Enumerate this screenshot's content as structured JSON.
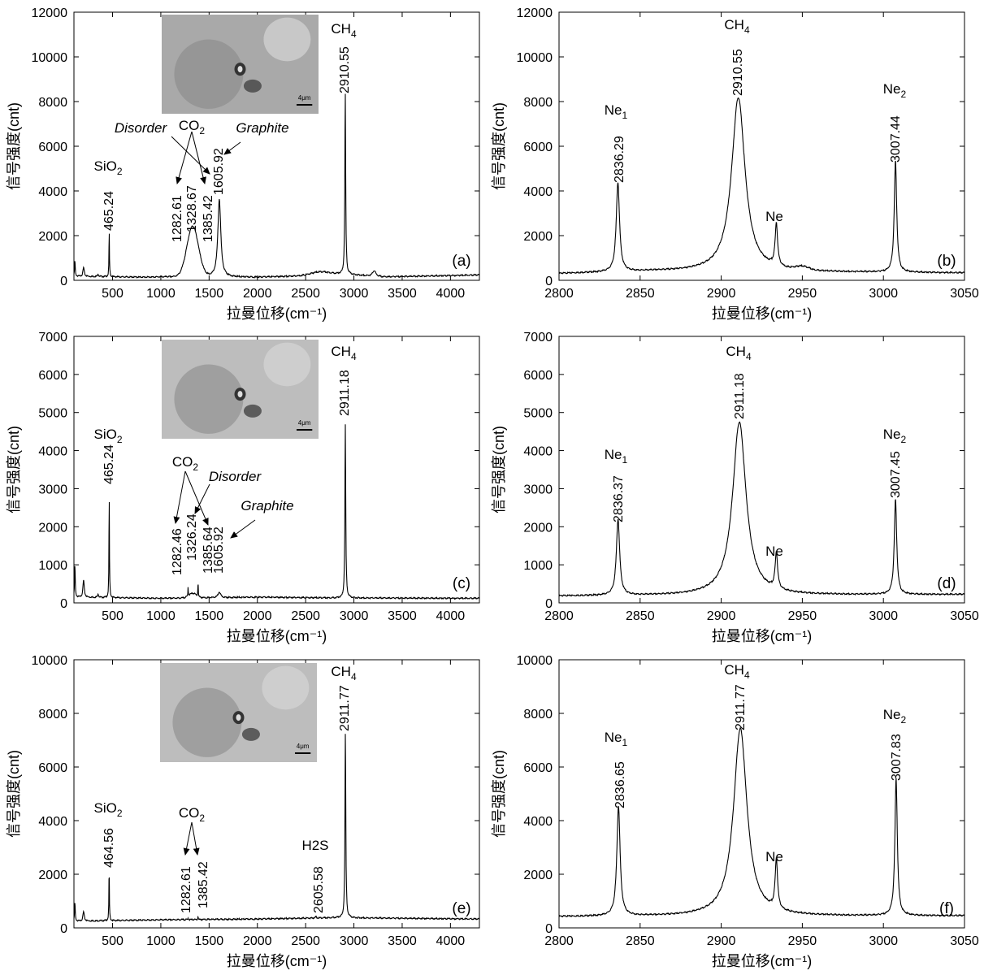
{
  "chart_data": [
    {
      "id": "a",
      "type": "line",
      "panel_label": "(a)",
      "xlabel": "拉曼位移(cm⁻¹)",
      "ylabel": "信号强度(cnt)",
      "xlim": [
        100,
        4300
      ],
      "ylim": [
        0,
        12000
      ],
      "xticks": [
        500,
        1000,
        1500,
        2000,
        2500,
        3000,
        3500,
        4000
      ],
      "yticks": [
        0,
        2000,
        4000,
        6000,
        8000,
        10000,
        12000
      ],
      "baseline": [
        [
          100,
          180
        ],
        [
          800,
          140
        ],
        [
          1100,
          160
        ],
        [
          2000,
          140
        ],
        [
          2500,
          200
        ],
        [
          2900,
          280
        ],
        [
          3300,
          150
        ],
        [
          4300,
          240
        ]
      ],
      "peaks": [
        {
          "x": 110,
          "h": 700,
          "w": 4,
          "s": "l"
        },
        {
          "x": 200,
          "h": 400,
          "w": 8,
          "s": "l"
        },
        {
          "x": 350,
          "h": 120,
          "w": 6,
          "s": "l"
        },
        {
          "x": 465.24,
          "h": 2020,
          "w": 3,
          "s": "l"
        },
        {
          "x": 1330,
          "h": 2250,
          "w": 60,
          "s": "g"
        },
        {
          "x": 1605.92,
          "h": 3500,
          "w": 18,
          "s": "l"
        },
        {
          "x": 2650,
          "h": 150,
          "w": 100,
          "s": "g"
        },
        {
          "x": 2910.55,
          "h": 8100,
          "w": 5,
          "s": "l"
        },
        {
          "x": 3210,
          "h": 250,
          "w": 20,
          "s": "l"
        }
      ],
      "peak_labels": [
        "465.24",
        "1282.61",
        "1328.67",
        "1385.42",
        "1605.92",
        "2910.55"
      ],
      "species_labels": [
        "SiO2",
        "CO2",
        "CH4"
      ],
      "annotations": [
        "Disorder",
        "Graphite"
      ],
      "inset_scale": "4μm"
    },
    {
      "id": "b",
      "type": "line",
      "panel_label": "(b)",
      "xlabel": "拉曼位移(cm⁻¹)",
      "ylabel": "信号强度(cnt)",
      "xlim": [
        2800,
        3050
      ],
      "ylim": [
        0,
        12000
      ],
      "xticks": [
        2800,
        2850,
        2900,
        2950,
        3000,
        3050
      ],
      "yticks": [
        0,
        2000,
        4000,
        6000,
        8000,
        10000,
        12000
      ],
      "baseline": [
        [
          2800,
          300
        ],
        [
          2860,
          400
        ],
        [
          3050,
          330
        ]
      ],
      "peaks": [
        {
          "x": 2836.29,
          "h": 4000,
          "w": 1.2,
          "s": "l"
        },
        {
          "x": 2910.55,
          "h": 7800,
          "w": 5,
          "s": "l"
        },
        {
          "x": 2934,
          "h": 1900,
          "w": 0.9,
          "s": "l"
        },
        {
          "x": 2950,
          "h": 150,
          "w": 4,
          "s": "g"
        },
        {
          "x": 3007.44,
          "h": 5000,
          "w": 0.9,
          "s": "l"
        }
      ],
      "peak_labels": [
        "2836.29",
        "2910.55",
        "3007.44"
      ],
      "species_labels": [
        "Ne1",
        "CH4",
        "Ne",
        "Ne2"
      ]
    },
    {
      "id": "c",
      "type": "line",
      "panel_label": "(c)",
      "xlabel": "拉曼位移(cm⁻¹)",
      "ylabel": "信号强度(cnt)",
      "xlim": [
        100,
        4300
      ],
      "ylim": [
        0,
        7000
      ],
      "xticks": [
        500,
        1000,
        1500,
        2000,
        2500,
        3000,
        3500,
        4000
      ],
      "yticks": [
        0,
        1000,
        2000,
        3000,
        4000,
        5000,
        6000,
        7000
      ],
      "baseline": [
        [
          100,
          150
        ],
        [
          1000,
          120
        ],
        [
          2000,
          150
        ],
        [
          2800,
          130
        ],
        [
          4300,
          120
        ]
      ],
      "peaks": [
        {
          "x": 110,
          "h": 850,
          "w": 4,
          "s": "l"
        },
        {
          "x": 200,
          "h": 450,
          "w": 8,
          "s": "l"
        },
        {
          "x": 350,
          "h": 100,
          "w": 6,
          "s": "l"
        },
        {
          "x": 465.24,
          "h": 2650,
          "w": 3,
          "s": "l"
        },
        {
          "x": 1282.46,
          "h": 250,
          "w": 2,
          "s": "l"
        },
        {
          "x": 1330,
          "h": 120,
          "w": 40,
          "s": "g"
        },
        {
          "x": 1385.64,
          "h": 450,
          "w": 2,
          "s": "l"
        },
        {
          "x": 1605.92,
          "h": 150,
          "w": 15,
          "s": "l"
        },
        {
          "x": 2911.18,
          "h": 4550,
          "w": 5,
          "s": "l"
        }
      ],
      "peak_labels": [
        "465.24",
        "1282.46",
        "1326.24",
        "1385.64",
        "1605.92",
        "2911.18"
      ],
      "species_labels": [
        "SiO2",
        "CO2",
        "CH4"
      ],
      "annotations": [
        "Disorder",
        "Graphite"
      ],
      "inset_scale": "4μm"
    },
    {
      "id": "d",
      "type": "line",
      "panel_label": "(d)",
      "xlabel": "拉曼位移(cm⁻¹)",
      "ylabel": "信号强度(cnt)",
      "xlim": [
        2800,
        3050
      ],
      "ylim": [
        0,
        7000
      ],
      "xticks": [
        2800,
        2850,
        2900,
        2950,
        3000,
        3050
      ],
      "yticks": [
        0,
        1000,
        2000,
        3000,
        4000,
        5000,
        6000,
        7000
      ],
      "baseline": [
        [
          2800,
          180
        ],
        [
          3050,
          220
        ]
      ],
      "peaks": [
        {
          "x": 2836.37,
          "h": 2000,
          "w": 1.2,
          "s": "l"
        },
        {
          "x": 2911.18,
          "h": 4550,
          "w": 5,
          "s": "l"
        },
        {
          "x": 2934,
          "h": 950,
          "w": 0.9,
          "s": "l"
        },
        {
          "x": 3007.45,
          "h": 2500,
          "w": 0.9,
          "s": "l"
        }
      ],
      "peak_labels": [
        "2836.37",
        "2911.18",
        "3007.45"
      ],
      "species_labels": [
        "Ne1",
        "CH4",
        "Ne",
        "Ne2"
      ]
    },
    {
      "id": "e",
      "type": "line",
      "panel_label": "(e)",
      "xlabel": "拉曼位移(cm⁻¹)",
      "ylabel": "信号强度(cnt)",
      "xlim": [
        100,
        4300
      ],
      "ylim": [
        0,
        10000
      ],
      "xticks": [
        500,
        1000,
        1500,
        2000,
        2500,
        3000,
        3500,
        4000
      ],
      "yticks": [
        0,
        2000,
        4000,
        6000,
        8000,
        10000
      ],
      "baseline": [
        [
          100,
          250
        ],
        [
          1000,
          300
        ],
        [
          2000,
          330
        ],
        [
          2800,
          380
        ],
        [
          4300,
          330
        ]
      ],
      "peaks": [
        {
          "x": 110,
          "h": 700,
          "w": 4,
          "s": "l"
        },
        {
          "x": 200,
          "h": 350,
          "w": 8,
          "s": "l"
        },
        {
          "x": 464.56,
          "h": 1950,
          "w": 3,
          "s": "l"
        },
        {
          "x": 1282.61,
          "h": 80,
          "w": 2,
          "s": "l"
        },
        {
          "x": 1385.42,
          "h": 150,
          "w": 2,
          "s": "l"
        },
        {
          "x": 2605.58,
          "h": 60,
          "w": 5,
          "s": "l"
        },
        {
          "x": 2911.77,
          "h": 7000,
          "w": 5,
          "s": "l"
        }
      ],
      "peak_labels": [
        "464.56",
        "1282.61",
        "1385.42",
        "2605.58",
        "2911.77"
      ],
      "species_labels": [
        "SiO2",
        "CO2",
        "H2S",
        "CH4"
      ],
      "inset_scale": "4μm"
    },
    {
      "id": "f",
      "type": "line",
      "panel_label": "(f)",
      "xlabel": "拉曼位移(cm⁻¹)",
      "ylabel": "信号强度(cnt)",
      "xlim": [
        2800,
        3050
      ],
      "ylim": [
        0,
        10000
      ],
      "xticks": [
        2800,
        2850,
        2900,
        2950,
        3000,
        3050
      ],
      "yticks": [
        0,
        2000,
        4000,
        6000,
        8000,
        10000
      ],
      "baseline": [
        [
          2800,
          420
        ],
        [
          3050,
          450
        ]
      ],
      "peaks": [
        {
          "x": 2836.65,
          "h": 4100,
          "w": 1.2,
          "s": "l"
        },
        {
          "x": 2911.77,
          "h": 7000,
          "w": 5,
          "s": "l"
        },
        {
          "x": 2934,
          "h": 1850,
          "w": 0.9,
          "s": "l"
        },
        {
          "x": 3007.83,
          "h": 5100,
          "w": 0.9,
          "s": "l"
        }
      ],
      "peak_labels": [
        "2836.65",
        "2911.77",
        "3007.83"
      ],
      "species_labels": [
        "Ne1",
        "CH4",
        "Ne",
        "Ne2"
      ]
    }
  ]
}
